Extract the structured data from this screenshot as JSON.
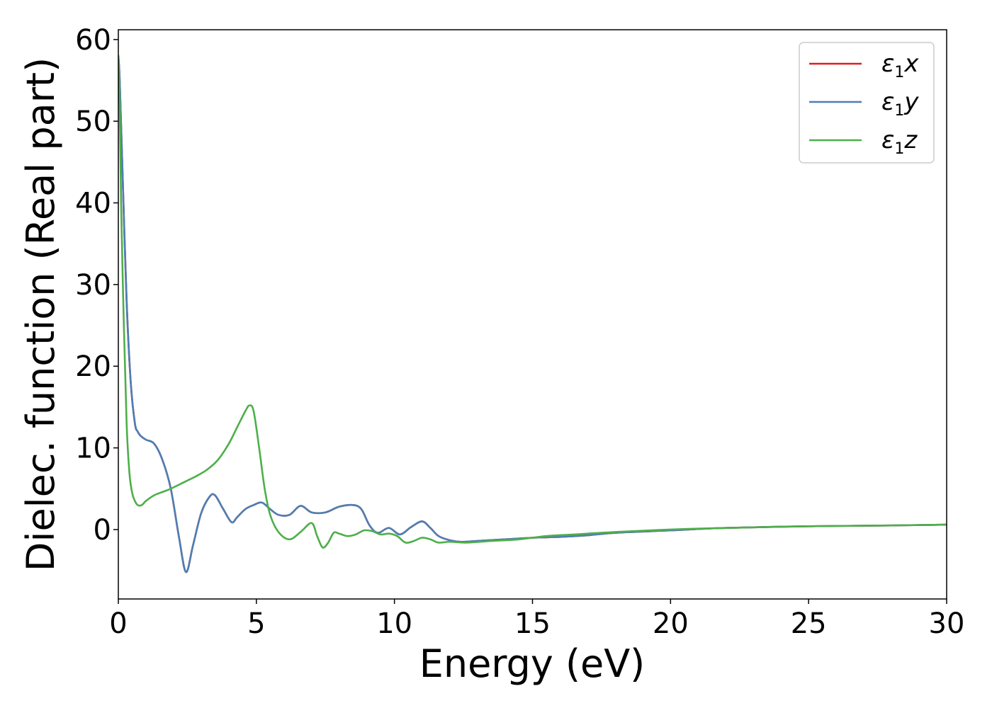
{
  "chart_data": {
    "type": "line",
    "title": "",
    "xlabel": "Energy (eV)",
    "ylabel": "Dielec. function (Real part)",
    "xlim": [
      0,
      30
    ],
    "ylim": [
      -8.5,
      61.2
    ],
    "xticks": [
      0,
      5,
      10,
      15,
      20,
      25,
      30
    ],
    "yticks": [
      0,
      10,
      20,
      30,
      40,
      50,
      60
    ],
    "grid": false,
    "legend_position": "top-right",
    "series": [
      {
        "name": "ε₁x",
        "legend_symbol": "ε",
        "legend_sub": "1",
        "legend_var": "x",
        "color": "#e41a1c",
        "x": [
          0,
          0.05,
          0.15,
          0.3,
          0.45,
          0.6,
          0.7,
          0.8,
          1.0,
          1.3,
          1.6,
          1.9,
          2.2,
          2.45,
          2.7,
          3.0,
          3.3,
          3.5,
          3.8,
          4.1,
          4.3,
          4.6,
          4.9,
          5.2,
          5.5,
          5.8,
          6.2,
          6.6,
          7.0,
          7.5,
          8.0,
          8.5,
          8.8,
          9.1,
          9.4,
          9.8,
          10.2,
          10.6,
          11.0,
          11.3,
          11.6,
          12.0,
          12.4,
          13.0,
          14.0,
          15.0,
          16.0,
          17.0,
          18.0,
          20.0,
          22.0,
          25.0,
          28.0,
          30.0
        ],
        "values": [
          58,
          55,
          44,
          28,
          18,
          13,
          12,
          11.5,
          11,
          10.5,
          8.5,
          5,
          -1,
          -5.2,
          -2,
          2,
          4,
          4.2,
          2.5,
          0.9,
          1.5,
          2.5,
          3,
          3.3,
          2.5,
          1.8,
          1.8,
          2.9,
          2.1,
          2.1,
          2.8,
          3.0,
          2.5,
          0.5,
          -0.4,
          0.2,
          -0.6,
          0.3,
          1.0,
          0.2,
          -0.8,
          -1.3,
          -1.5,
          -1.4,
          -1.2,
          -1.0,
          -0.9,
          -0.7,
          -0.4,
          -0.1,
          0.2,
          0.4,
          0.5,
          0.6
        ]
      },
      {
        "name": "ε₁y",
        "legend_symbol": "ε",
        "legend_sub": "1",
        "legend_var": "y",
        "color": "#4c7fb4",
        "x": [
          0,
          0.05,
          0.15,
          0.3,
          0.45,
          0.6,
          0.7,
          0.8,
          1.0,
          1.3,
          1.6,
          1.9,
          2.2,
          2.45,
          2.7,
          3.0,
          3.3,
          3.5,
          3.8,
          4.1,
          4.3,
          4.6,
          4.9,
          5.2,
          5.5,
          5.8,
          6.2,
          6.6,
          7.0,
          7.5,
          8.0,
          8.5,
          8.8,
          9.1,
          9.4,
          9.8,
          10.2,
          10.6,
          11.0,
          11.3,
          11.6,
          12.0,
          12.4,
          13.0,
          14.0,
          15.0,
          16.0,
          17.0,
          18.0,
          20.0,
          22.0,
          25.0,
          28.0,
          30.0
        ],
        "values": [
          58,
          55,
          44,
          28,
          18,
          13,
          12,
          11.5,
          11,
          10.5,
          8.5,
          5,
          -1,
          -5.2,
          -2,
          2,
          4,
          4.2,
          2.5,
          0.9,
          1.5,
          2.5,
          3,
          3.3,
          2.5,
          1.8,
          1.8,
          2.9,
          2.1,
          2.1,
          2.8,
          3.0,
          2.5,
          0.5,
          -0.4,
          0.2,
          -0.6,
          0.3,
          1.0,
          0.2,
          -0.8,
          -1.3,
          -1.5,
          -1.4,
          -1.2,
          -1.0,
          -0.9,
          -0.7,
          -0.4,
          -0.1,
          0.2,
          0.4,
          0.5,
          0.6
        ]
      },
      {
        "name": "ε₁z",
        "legend_symbol": "ε",
        "legend_sub": "1",
        "legend_var": "z",
        "color": "#4daf4a",
        "x": [
          0,
          0.05,
          0.1,
          0.2,
          0.3,
          0.4,
          0.5,
          0.6,
          0.7,
          0.85,
          1.0,
          1.3,
          1.6,
          1.9,
          2.2,
          2.5,
          2.8,
          3.2,
          3.6,
          4.0,
          4.3,
          4.6,
          4.75,
          4.9,
          5.1,
          5.3,
          5.5,
          5.8,
          6.2,
          6.6,
          7.0,
          7.2,
          7.4,
          7.6,
          7.8,
          8.0,
          8.3,
          8.6,
          8.9,
          9.2,
          9.5,
          9.8,
          10.1,
          10.4,
          10.7,
          11.0,
          11.3,
          11.6,
          12.0,
          12.6,
          13.5,
          14.5,
          15.5,
          16.5,
          18.0,
          20.0,
          22.0,
          25.0,
          28.0,
          30.0
        ],
        "values": [
          58,
          52,
          40,
          25,
          13,
          7,
          4.5,
          3.5,
          3.0,
          3.0,
          3.5,
          4.2,
          4.6,
          5.0,
          5.5,
          6.0,
          6.5,
          7.3,
          8.5,
          10.5,
          12.5,
          14.5,
          15.2,
          14.5,
          10,
          5,
          1.8,
          -0.3,
          -1.2,
          -0.3,
          0.8,
          -0.8,
          -2.2,
          -1.6,
          -0.4,
          -0.5,
          -0.8,
          -0.6,
          -0.1,
          -0.2,
          -0.6,
          -0.5,
          -0.8,
          -1.6,
          -1.4,
          -1.0,
          -1.2,
          -1.6,
          -1.5,
          -1.6,
          -1.4,
          -1.2,
          -0.8,
          -0.6,
          -0.3,
          0.0,
          0.2,
          0.4,
          0.5,
          0.6
        ]
      }
    ]
  }
}
